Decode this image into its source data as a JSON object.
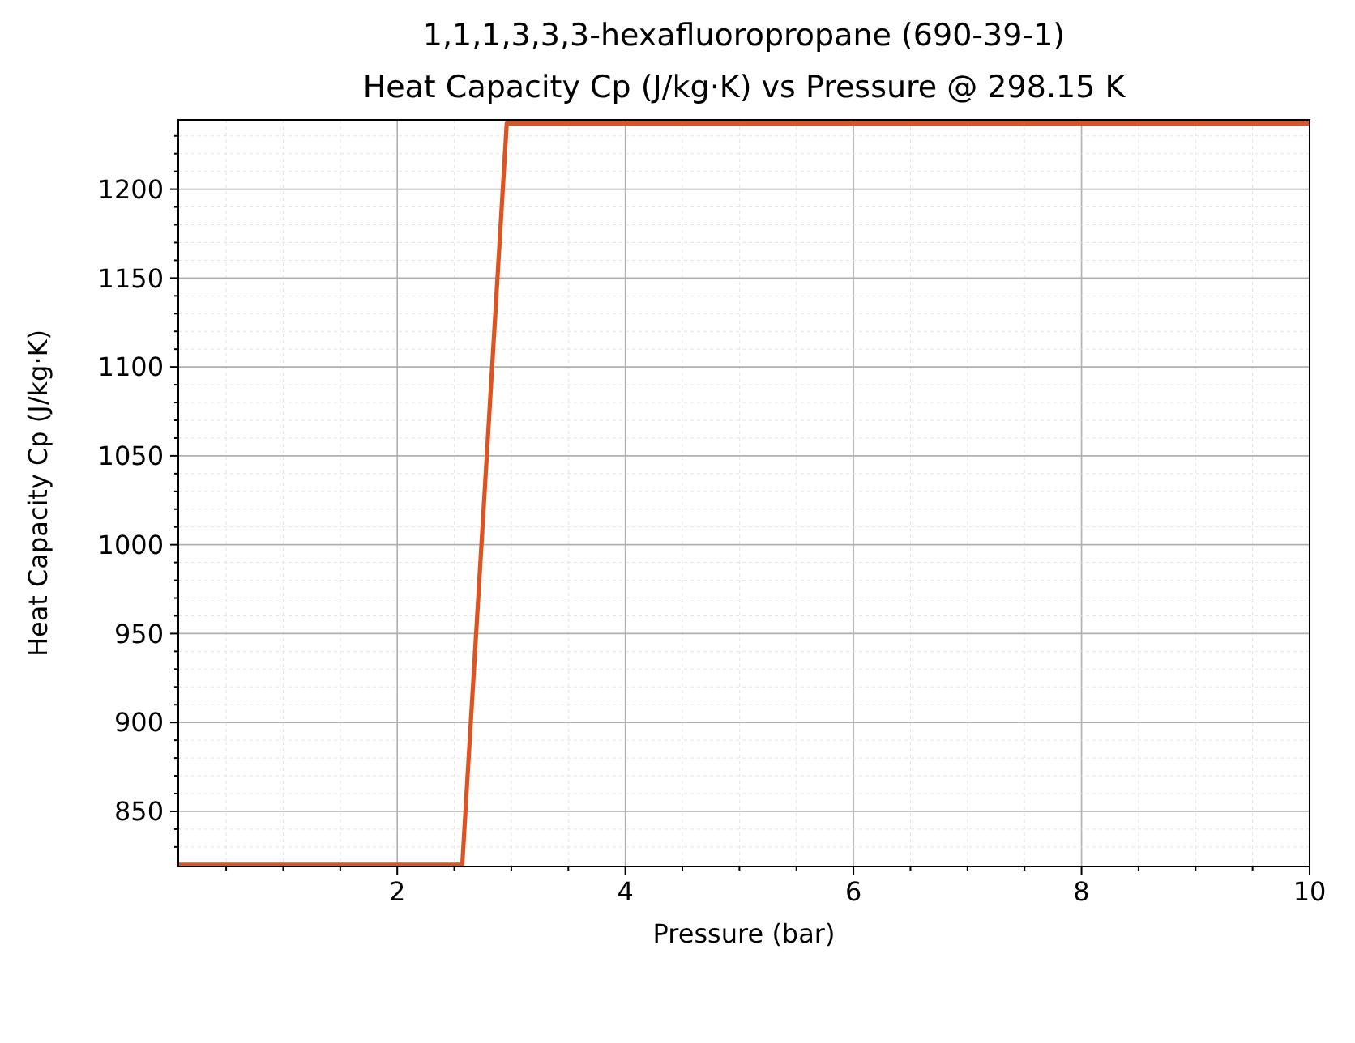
{
  "chart_data": {
    "type": "line",
    "title": "1,1,1,3,3,3-hexafluoropropane (690-39-1)",
    "subtitle": "Heat Capacity Cp (J/kg·K) vs Pressure @ 298.15 K",
    "xlabel": "Pressure (bar)",
    "ylabel": "Heat Capacity Cp (J/kg·K)",
    "x": [
      0.08,
      2.57,
      2.96,
      10
    ],
    "series": [
      {
        "color": "#dc5422",
        "values": [
          820,
          820,
          1237,
          1237
        ]
      }
    ],
    "xlim": [
      0.08,
      10
    ],
    "ylim": [
      819,
      1239
    ],
    "xticks": [
      {
        "value": 0.5,
        "label": null
      },
      {
        "value": 1,
        "label": null
      },
      {
        "value": 1.5,
        "label": null
      },
      2,
      {
        "value": 2.5,
        "label": null
      },
      {
        "value": 3,
        "label": null
      },
      {
        "value": 3.5,
        "label": null
      },
      4,
      {
        "value": 4.5,
        "label": null
      },
      {
        "value": 5,
        "label": null
      },
      {
        "value": 5.5,
        "label": null
      },
      6,
      {
        "value": 6.5,
        "label": null
      },
      {
        "value": 7,
        "label": null
      },
      {
        "value": 7.5,
        "label": null
      },
      8,
      {
        "value": 8.5,
        "label": null
      },
      {
        "value": 9,
        "label": null
      },
      {
        "value": 9.5,
        "label": null
      },
      10
    ],
    "yticks": [
      {
        "value": 830,
        "label": null
      },
      {
        "value": 840,
        "label": null
      },
      850,
      {
        "value": 860,
        "label": null
      },
      {
        "value": 870,
        "label": null
      },
      {
        "value": 880,
        "label": null
      },
      {
        "value": 890,
        "label": null
      },
      900,
      {
        "value": 910,
        "label": null
      },
      {
        "value": 920,
        "label": null
      },
      {
        "value": 930,
        "label": null
      },
      {
        "value": 940,
        "label": null
      },
      950,
      {
        "value": 960,
        "label": null
      },
      {
        "value": 970,
        "label": null
      },
      {
        "value": 980,
        "label": null
      },
      {
        "value": 990,
        "label": null
      },
      1000,
      {
        "value": 1010,
        "label": null
      },
      {
        "value": 1020,
        "label": null
      },
      {
        "value": 1030,
        "label": null
      },
      {
        "value": 1040,
        "label": null
      },
      1050,
      {
        "value": 1060,
        "label": null
      },
      {
        "value": 1070,
        "label": null
      },
      {
        "value": 1080,
        "label": null
      },
      {
        "value": 1090,
        "label": null
      },
      1100,
      {
        "value": 1110,
        "label": null
      },
      {
        "value": 1120,
        "label": null
      },
      {
        "value": 1130,
        "label": null
      },
      {
        "value": 1140,
        "label": null
      },
      1150,
      {
        "value": 1160,
        "label": null
      },
      {
        "value": 1170,
        "label": null
      },
      {
        "value": 1180,
        "label": null
      },
      {
        "value": 1190,
        "label": null
      },
      1200,
      {
        "value": 1210,
        "label": null
      },
      {
        "value": 1220,
        "label": null
      },
      {
        "value": 1230,
        "label": null
      }
    ],
    "grid": true,
    "marker": "none",
    "line_style": "solid"
  }
}
